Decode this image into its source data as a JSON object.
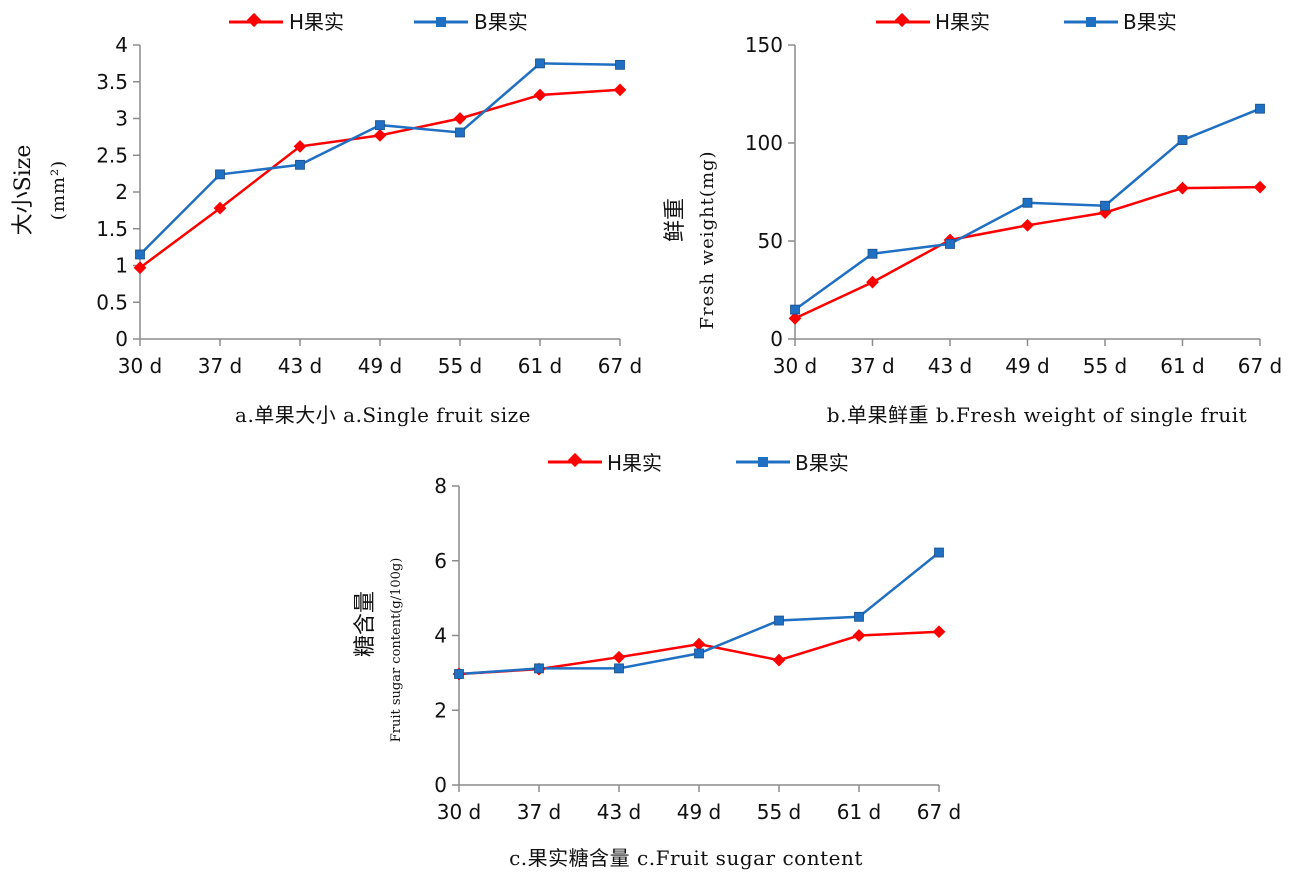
{
  "colors": {
    "H": "#ff0000",
    "B": "#1f6fc2",
    "axis": "#8c8c8c"
  },
  "chart_data": [
    {
      "id": "a",
      "type": "line",
      "categories": [
        "30 d",
        "37 d",
        "43 d",
        "49 d",
        "55 d",
        "61 d",
        "67 d"
      ],
      "series": [
        {
          "name": "H果实",
          "marker": "diamond",
          "values": [
            0.97,
            1.78,
            2.62,
            2.77,
            3.0,
            3.32,
            3.39
          ]
        },
        {
          "name": "B果实",
          "marker": "square",
          "values": [
            1.15,
            2.24,
            2.37,
            2.91,
            2.81,
            3.75,
            3.73
          ]
        }
      ],
      "yticks": [
        "0",
        "0.5",
        "1",
        "1.5",
        "2",
        "2.5",
        "3",
        "3.5",
        "4"
      ],
      "ylim": [
        0,
        4
      ],
      "ylabel_cn": "大小Size",
      "ylabel_unit": "(mm²)",
      "caption": "a.单果大小  a.Single fruit size",
      "legend_position": "top",
      "grid": false
    },
    {
      "id": "b",
      "type": "line",
      "categories": [
        "30 d",
        "37 d",
        "43 d",
        "49 d",
        "55 d",
        "61 d",
        "67 d"
      ],
      "series": [
        {
          "name": "H果实",
          "marker": "diamond",
          "values": [
            10.5,
            29.0,
            50.5,
            58.0,
            64.5,
            77.0,
            77.5
          ]
        },
        {
          "name": "B果实",
          "marker": "square",
          "values": [
            15.0,
            43.5,
            48.5,
            69.5,
            68.0,
            101.5,
            117.5
          ]
        }
      ],
      "yticks": [
        "0",
        "50",
        "100",
        "150"
      ],
      "ylim": [
        0,
        150
      ],
      "ylabel_cn": "鲜重",
      "ylabel_en": "Fresh weight(mg)",
      "caption": "b.单果鲜重 b.Fresh weight of single fruit",
      "legend_position": "top",
      "grid": false
    },
    {
      "id": "c",
      "type": "line",
      "categories": [
        "30 d",
        "37 d",
        "43 d",
        "49 d",
        "55 d",
        "61 d",
        "67 d"
      ],
      "series": [
        {
          "name": "H果实",
          "marker": "diamond",
          "values": [
            2.97,
            3.1,
            3.42,
            3.77,
            3.34,
            4.0,
            4.1
          ]
        },
        {
          "name": "B果实",
          "marker": "square",
          "values": [
            2.97,
            3.12,
            3.12,
            3.52,
            4.4,
            4.5,
            6.22
          ]
        }
      ],
      "yticks": [
        "0",
        "2",
        "4",
        "6",
        "8"
      ],
      "ylim": [
        0,
        8
      ],
      "ylabel_cn": "糖含量",
      "ylabel_en": "Fruit sugar content(g/100g)",
      "caption": "c.果实糖含量 c.Fruit sugar content",
      "legend_position": "top",
      "grid": false
    }
  ]
}
